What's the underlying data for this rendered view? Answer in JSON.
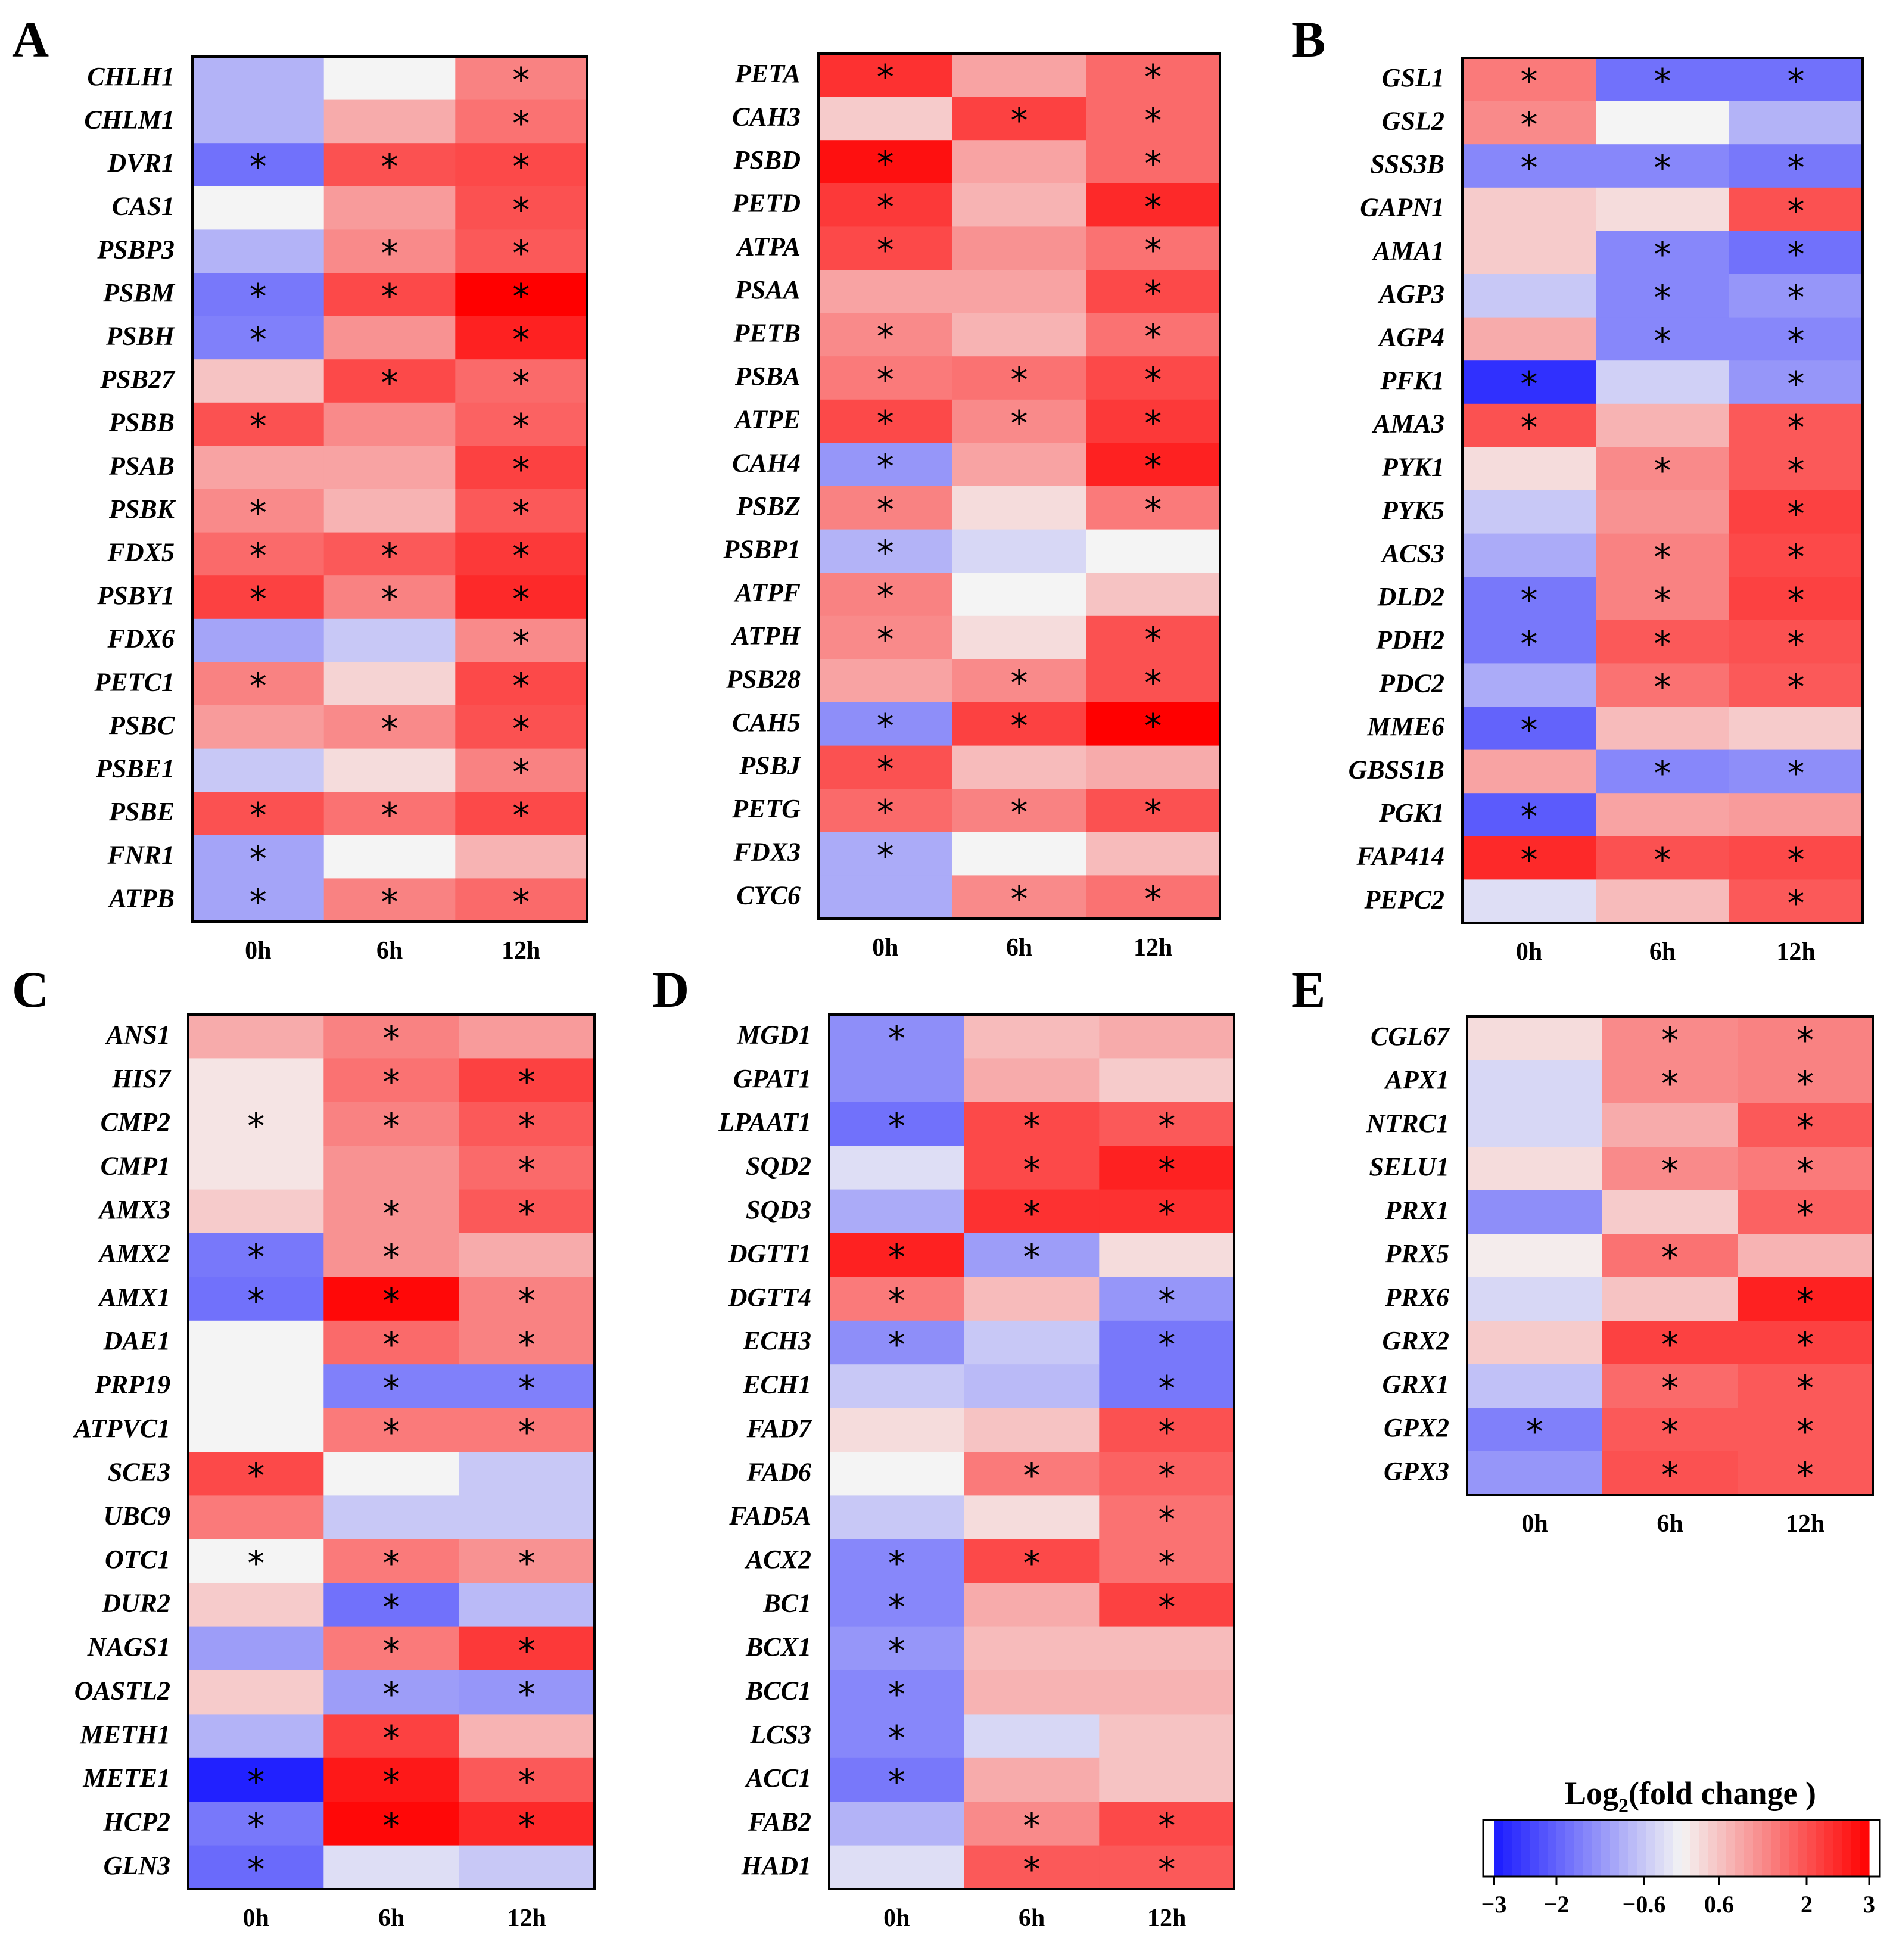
{
  "colors": {
    "low": "#1a1aff",
    "mid": "#f4f4f4",
    "high": "#ff0000"
  },
  "legend": {
    "title_pre": "Log",
    "title_sub": "2",
    "title_post": "(fold change )",
    "range": [
      -3,
      3
    ],
    "ticks": [
      "−3",
      "−2",
      "−0.6",
      "0.6",
      "2",
      "3"
    ],
    "tick_values": [
      -3,
      -2,
      -0.6,
      0.6,
      2,
      3
    ]
  },
  "chart_data": [
    {
      "type": "heatmap",
      "panel": "A",
      "columns": [
        "0h",
        "6h",
        "12h"
      ],
      "rows": [
        "CHLH1",
        "CHLM1",
        "DVR1",
        "CAS1",
        "PSBP3",
        "PSBM",
        "PSBH",
        "PSB27",
        "PSBB",
        "PSAB",
        "PSBK",
        "FDX5",
        "PSBY1",
        "FDX6",
        "PETC1",
        "PSBC",
        "PSBE1",
        "PSBE",
        "FNR1",
        "ATPB"
      ],
      "values": [
        [
          -0.9,
          0,
          1.4
        ],
        [
          -0.9,
          0.9,
          1.6
        ],
        [
          -1.8,
          2,
          2.1
        ],
        [
          0,
          1.1,
          2
        ],
        [
          -0.9,
          1.3,
          1.9
        ],
        [
          -1.7,
          2.1,
          3
        ],
        [
          -1.6,
          1.2,
          2.6
        ],
        [
          0.6,
          2.1,
          1.7
        ],
        [
          2,
          1.3,
          1.8
        ],
        [
          1,
          1,
          2.2
        ],
        [
          1.3,
          0.8,
          1.9
        ],
        [
          1.7,
          1.9,
          2.3
        ],
        [
          2.2,
          1.4,
          2.5
        ],
        [
          -1.1,
          -0.6,
          1.3
        ],
        [
          1.4,
          0.4,
          2.1
        ],
        [
          1.1,
          1.3,
          2
        ],
        [
          -0.6,
          0.3,
          1.4
        ],
        [
          2,
          1.6,
          2.1
        ],
        [
          -1.1,
          0,
          0.8
        ],
        [
          -1.1,
          1.4,
          1.7
        ]
      ],
      "significant": [
        [
          0,
          0,
          1
        ],
        [
          0,
          0,
          1
        ],
        [
          1,
          1,
          1
        ],
        [
          0,
          0,
          1
        ],
        [
          0,
          1,
          1
        ],
        [
          1,
          1,
          1
        ],
        [
          1,
          0,
          1
        ],
        [
          0,
          1,
          1
        ],
        [
          1,
          0,
          1
        ],
        [
          0,
          0,
          1
        ],
        [
          1,
          0,
          1
        ],
        [
          1,
          1,
          1
        ],
        [
          1,
          1,
          1
        ],
        [
          0,
          0,
          1
        ],
        [
          1,
          0,
          1
        ],
        [
          0,
          1,
          1
        ],
        [
          0,
          0,
          1
        ],
        [
          1,
          1,
          1
        ],
        [
          1,
          0,
          0
        ],
        [
          1,
          1,
          1
        ]
      ]
    },
    {
      "type": "heatmap",
      "panel": "",
      "columns": [
        "0h",
        "6h",
        "12h"
      ],
      "rows": [
        "PETA",
        "CAH3",
        "PSBD",
        "PETD",
        "ATPA",
        "PSAA",
        "PETB",
        "PSBA",
        "ATPE",
        "CAH4",
        "PSBZ",
        "PSBP1",
        "ATPF",
        "ATPH",
        "PSB28",
        "CAH5",
        "PSBJ",
        "PETG",
        "FDX3",
        "CYC6"
      ],
      "values": [
        [
          2.4,
          1,
          1.7
        ],
        [
          0.5,
          2.2,
          1.7
        ],
        [
          2.8,
          1,
          1.7
        ],
        [
          2.3,
          0.8,
          2.5
        ],
        [
          2.1,
          1.2,
          1.6
        ],
        [
          1,
          1,
          2.1
        ],
        [
          1.3,
          0.8,
          1.6
        ],
        [
          1.5,
          1.6,
          2.1
        ],
        [
          2.1,
          1.3,
          2.3
        ],
        [
          -1.3,
          1,
          2.6
        ],
        [
          1.4,
          0.3,
          1.5
        ],
        [
          -0.9,
          -0.4,
          0
        ],
        [
          1.4,
          0,
          0.6
        ],
        [
          1.3,
          0.3,
          2
        ],
        [
          1,
          1.3,
          2
        ],
        [
          -1.4,
          2.2,
          3
        ],
        [
          2,
          0.7,
          0.9
        ],
        [
          1.7,
          1.4,
          2
        ],
        [
          -1,
          0,
          0.7
        ],
        [
          -1,
          1.3,
          1.6
        ]
      ],
      "significant": [
        [
          1,
          0,
          1
        ],
        [
          0,
          1,
          1
        ],
        [
          1,
          0,
          1
        ],
        [
          1,
          0,
          1
        ],
        [
          1,
          0,
          1
        ],
        [
          0,
          0,
          1
        ],
        [
          1,
          0,
          1
        ],
        [
          1,
          1,
          1
        ],
        [
          1,
          1,
          1
        ],
        [
          1,
          0,
          1
        ],
        [
          1,
          0,
          1
        ],
        [
          1,
          0,
          0
        ],
        [
          1,
          0,
          0
        ],
        [
          1,
          0,
          1
        ],
        [
          0,
          1,
          1
        ],
        [
          1,
          1,
          1
        ],
        [
          1,
          0,
          0
        ],
        [
          1,
          1,
          1
        ],
        [
          1,
          0,
          0
        ],
        [
          0,
          1,
          1
        ]
      ]
    },
    {
      "type": "heatmap",
      "panel": "B",
      "columns": [
        "0h",
        "6h",
        "12h"
      ],
      "rows": [
        "GSL1",
        "GSL2",
        "SSS3B",
        "GAPN1",
        "AMA1",
        "AGP3",
        "AGP4",
        "PFK1",
        "AMA3",
        "PYK1",
        "PYK5",
        "ACS3",
        "DLD2",
        "PDH2",
        "PDC2",
        "MME6",
        "GBSS1B",
        "PGK1",
        "FAP414",
        "PEPC2"
      ],
      "values": [
        [
          1.5,
          -1.8,
          -1.8
        ],
        [
          1.3,
          0,
          -0.9
        ],
        [
          -1.5,
          -1.5,
          -1.7
        ],
        [
          0.5,
          0.3,
          2
        ],
        [
          0.5,
          -1.5,
          -1.8
        ],
        [
          -0.6,
          -1.5,
          -1.3
        ],
        [
          0.9,
          -1.5,
          -1.5
        ],
        [
          -2.7,
          -0.5,
          -1.3
        ],
        [
          2,
          0.8,
          1.9
        ],
        [
          0.3,
          1.3,
          1.9
        ],
        [
          -0.6,
          1.2,
          2.2
        ],
        [
          -1,
          1.4,
          2.1
        ],
        [
          -1.7,
          1.4,
          2.2
        ],
        [
          -1.7,
          1.9,
          2
        ],
        [
          -1,
          1.6,
          1.9
        ],
        [
          -2,
          0.7,
          0.5
        ],
        [
          1,
          -1.5,
          -1.4
        ],
        [
          -2.1,
          1,
          1.1
        ],
        [
          2.5,
          2,
          2.1
        ],
        [
          -0.3,
          0.7,
          1.9
        ]
      ],
      "significant": [
        [
          1,
          1,
          1
        ],
        [
          1,
          0,
          0
        ],
        [
          1,
          1,
          1
        ],
        [
          0,
          0,
          1
        ],
        [
          0,
          1,
          1
        ],
        [
          0,
          1,
          1
        ],
        [
          0,
          1,
          1
        ],
        [
          1,
          0,
          1
        ],
        [
          1,
          0,
          1
        ],
        [
          0,
          1,
          1
        ],
        [
          0,
          0,
          1
        ],
        [
          0,
          1,
          1
        ],
        [
          1,
          1,
          1
        ],
        [
          1,
          1,
          1
        ],
        [
          0,
          1,
          1
        ],
        [
          1,
          0,
          0
        ],
        [
          0,
          1,
          1
        ],
        [
          1,
          0,
          0
        ],
        [
          1,
          1,
          1
        ],
        [
          0,
          0,
          1
        ]
      ]
    },
    {
      "type": "heatmap",
      "panel": "C",
      "columns": [
        "0h",
        "6h",
        "12h"
      ],
      "rows": [
        "ANS1",
        "HIS7",
        "CMP2",
        "CMP1",
        "AMX3",
        "AMX2",
        "AMX1",
        "DAE1",
        "PRP19",
        "ATPVC1",
        "SCE3",
        "UBC9",
        "OTC1",
        "DUR2",
        "NAGS1",
        "OASTL2",
        "METH1",
        "METE1",
        "HCP2",
        "GLN3"
      ],
      "values": [
        [
          0.9,
          1.4,
          1.1
        ],
        [
          0.2,
          1.6,
          2.2
        ],
        [
          0.2,
          1.4,
          1.9
        ],
        [
          0.2,
          1.2,
          1.7
        ],
        [
          0.5,
          1.2,
          1.9
        ],
        [
          -1.7,
          1.2,
          0.9
        ],
        [
          -1.8,
          2.9,
          1.4
        ],
        [
          0,
          1.7,
          1.4
        ],
        [
          0,
          -1.6,
          -1.6
        ],
        [
          0,
          1.5,
          1.5
        ],
        [
          2.1,
          0,
          -0.6
        ],
        [
          1.5,
          -0.6,
          -0.6
        ],
        [
          0,
          1.5,
          1.2
        ],
        [
          0.5,
          -1.8,
          -0.8
        ],
        [
          -1.2,
          1.5,
          2.3
        ],
        [
          0.5,
          -1.2,
          -1.3
        ],
        [
          -0.9,
          2.2,
          0.8
        ],
        [
          -2.9,
          2.7,
          1.9
        ],
        [
          -1.7,
          2.9,
          2.5
        ],
        [
          -1.9,
          -0.3,
          -0.6
        ]
      ],
      "significant": [
        [
          0,
          1,
          0
        ],
        [
          0,
          1,
          1
        ],
        [
          1,
          1,
          1
        ],
        [
          0,
          0,
          1
        ],
        [
          0,
          1,
          1
        ],
        [
          1,
          1,
          0
        ],
        [
          1,
          1,
          1
        ],
        [
          0,
          1,
          1
        ],
        [
          0,
          1,
          1
        ],
        [
          0,
          1,
          1
        ],
        [
          1,
          0,
          0
        ],
        [
          0,
          0,
          0
        ],
        [
          1,
          1,
          1
        ],
        [
          0,
          1,
          0
        ],
        [
          0,
          1,
          1
        ],
        [
          0,
          1,
          1
        ],
        [
          0,
          1,
          0
        ],
        [
          1,
          1,
          1
        ],
        [
          1,
          1,
          1
        ],
        [
          1,
          0,
          0
        ]
      ]
    },
    {
      "type": "heatmap",
      "panel": "D",
      "columns": [
        "0h",
        "6h",
        "12h"
      ],
      "rows": [
        "MGD1",
        "GPAT1",
        "LPAAT1",
        "SQD2",
        "SQD3",
        "DGTT1",
        "DGTT4",
        "ECH3",
        "ECH1",
        "FAD7",
        "FAD6",
        "FAD5A",
        "ACX2",
        "BC1",
        "BCX1",
        "BCC1",
        "LCS3",
        "ACC1",
        "FAB2",
        "HAD1"
      ],
      "values": [
        [
          -1.4,
          0.7,
          0.9
        ],
        [
          -1.4,
          0.9,
          0.5
        ],
        [
          -1.8,
          2.1,
          1.9
        ],
        [
          -0.3,
          2.1,
          2.6
        ],
        [
          -1,
          2.4,
          2.4
        ],
        [
          2.6,
          -1.2,
          0.3
        ],
        [
          1.5,
          0.7,
          -1.3
        ],
        [
          -1.4,
          -0.6,
          -1.7
        ],
        [
          -0.6,
          -0.8,
          -1.7
        ],
        [
          0.3,
          0.6,
          2
        ],
        [
          0,
          1.5,
          1.8
        ],
        [
          -0.6,
          0.3,
          1.6
        ],
        [
          -1.5,
          2.1,
          1.6
        ],
        [
          -1.5,
          0.9,
          2.2
        ],
        [
          -1.3,
          0.7,
          0.7
        ],
        [
          -1.5,
          0.8,
          0.8
        ],
        [
          -1.5,
          -0.4,
          0.6
        ],
        [
          -1.7,
          0.9,
          0.6
        ],
        [
          -0.9,
          1.3,
          2.1
        ],
        [
          -0.3,
          1.9,
          1.9
        ]
      ],
      "significant": [
        [
          1,
          0,
          0
        ],
        [
          0,
          0,
          0
        ],
        [
          1,
          1,
          1
        ],
        [
          0,
          1,
          1
        ],
        [
          0,
          1,
          1
        ],
        [
          1,
          1,
          0
        ],
        [
          1,
          0,
          1
        ],
        [
          1,
          0,
          1
        ],
        [
          0,
          0,
          1
        ],
        [
          0,
          0,
          1
        ],
        [
          0,
          1,
          1
        ],
        [
          0,
          0,
          1
        ],
        [
          1,
          1,
          1
        ],
        [
          1,
          0,
          1
        ],
        [
          1,
          0,
          0
        ],
        [
          1,
          0,
          0
        ],
        [
          1,
          0,
          0
        ],
        [
          1,
          0,
          0
        ],
        [
          0,
          1,
          1
        ],
        [
          0,
          1,
          1
        ]
      ]
    },
    {
      "type": "heatmap",
      "panel": "E",
      "columns": [
        "0h",
        "6h",
        "12h"
      ],
      "rows": [
        "CGL67",
        "APX1",
        "NTRC1",
        "SELU1",
        "PRX1",
        "PRX5",
        "PRX6",
        "GRX2",
        "GRX1",
        "GPX2",
        "GPX3"
      ],
      "values": [
        [
          0.3,
          1.3,
          1.4
        ],
        [
          -0.4,
          1.3,
          1.4
        ],
        [
          -0.4,
          0.9,
          1.9
        ],
        [
          0.3,
          1.3,
          1.5
        ],
        [
          -1.4,
          0.5,
          1.8
        ],
        [
          0.1,
          1.6,
          0.8
        ],
        [
          -0.4,
          0.6,
          2.6
        ],
        [
          0.5,
          2.2,
          2.2
        ],
        [
          -0.7,
          1.7,
          1.9
        ],
        [
          -1.6,
          1.9,
          1.9
        ],
        [
          -1.3,
          2,
          1.9
        ]
      ],
      "significant": [
        [
          0,
          1,
          1
        ],
        [
          0,
          1,
          1
        ],
        [
          0,
          0,
          1
        ],
        [
          0,
          1,
          1
        ],
        [
          0,
          0,
          1
        ],
        [
          0,
          1,
          0
        ],
        [
          0,
          0,
          1
        ],
        [
          0,
          1,
          1
        ],
        [
          0,
          1,
          1
        ],
        [
          1,
          1,
          1
        ],
        [
          0,
          1,
          1
        ]
      ]
    }
  ]
}
